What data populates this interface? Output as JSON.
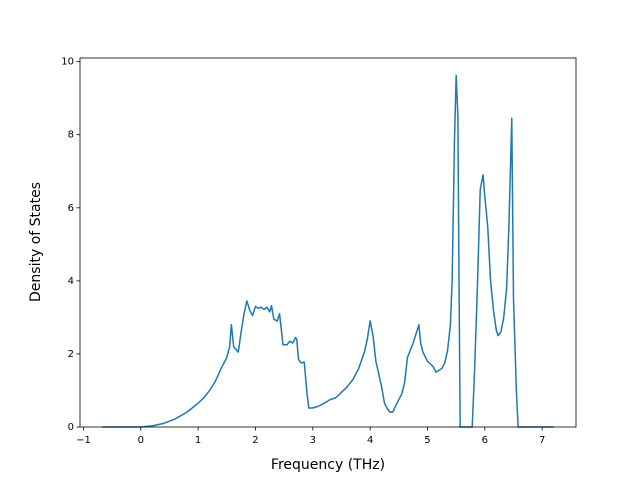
{
  "chart_data": {
    "type": "line",
    "xlabel": "Frequency (THz)",
    "ylabel": "Density of States",
    "color": "#1f77b4",
    "x": [
      -0.67,
      0,
      0.2,
      0.4,
      0.6,
      0.8,
      1.0,
      1.1,
      1.2,
      1.3,
      1.4,
      1.5,
      1.55,
      1.58,
      1.62,
      1.7,
      1.75,
      1.8,
      1.85,
      1.9,
      1.95,
      2.0,
      2.05,
      2.1,
      2.15,
      2.2,
      2.25,
      2.28,
      2.32,
      2.38,
      2.42,
      2.48,
      2.55,
      2.6,
      2.65,
      2.7,
      2.72,
      2.75,
      2.8,
      2.85,
      2.9,
      2.93,
      3.0,
      3.1,
      3.2,
      3.3,
      3.4,
      3.5,
      3.6,
      3.7,
      3.8,
      3.9,
      3.95,
      4.0,
      4.05,
      4.1,
      4.2,
      4.25,
      4.3,
      4.35,
      4.4,
      4.45,
      4.5,
      4.55,
      4.6,
      4.65,
      4.7,
      4.75,
      4.8,
      4.85,
      4.88,
      4.92,
      5.0,
      5.1,
      5.15,
      5.25,
      5.3,
      5.35,
      5.4,
      5.43,
      5.47,
      5.5,
      5.53,
      5.55,
      5.57,
      5.78,
      5.82,
      5.87,
      5.92,
      5.97,
      6.0,
      6.05,
      6.1,
      6.15,
      6.2,
      6.23,
      6.28,
      6.33,
      6.38,
      6.42,
      6.47,
      6.5,
      6.55,
      6.58,
      7.2
    ],
    "values": [
      0,
      0,
      0.03,
      0.1,
      0.22,
      0.4,
      0.65,
      0.8,
      1.0,
      1.25,
      1.6,
      1.9,
      2.2,
      2.8,
      2.2,
      2.05,
      2.6,
      3.1,
      3.45,
      3.2,
      3.05,
      3.3,
      3.25,
      3.28,
      3.22,
      3.28,
      3.15,
      3.32,
      2.95,
      2.9,
      3.1,
      2.25,
      2.25,
      2.35,
      2.3,
      2.45,
      2.4,
      1.85,
      1.75,
      1.78,
      0.9,
      0.52,
      0.52,
      0.57,
      0.65,
      0.75,
      0.8,
      0.95,
      1.1,
      1.3,
      1.6,
      2.05,
      2.4,
      2.9,
      2.5,
      1.8,
      1.1,
      0.65,
      0.5,
      0.4,
      0.42,
      0.6,
      0.75,
      0.9,
      1.2,
      1.9,
      2.1,
      2.3,
      2.55,
      2.8,
      2.3,
      2.05,
      1.8,
      1.65,
      1.5,
      1.6,
      1.75,
      2.1,
      2.8,
      4.0,
      7.8,
      9.62,
      8.5,
      4.0,
      0,
      0,
      1.5,
      3.8,
      6.5,
      6.9,
      6.3,
      5.5,
      4.0,
      3.2,
      2.65,
      2.5,
      2.6,
      3.0,
      3.8,
      5.5,
      8.45,
      3.5,
      1.0,
      0,
      0
    ],
    "xlim": [
      -1.06,
      7.59
    ],
    "xticks": [
      {
        "value": -1,
        "label": "−1"
      },
      0,
      1,
      2,
      3,
      4,
      5,
      6,
      7
    ],
    "ylim": [
      0,
      10.1
    ],
    "yticks": [
      0,
      2,
      4,
      6,
      8,
      10
    ]
  }
}
